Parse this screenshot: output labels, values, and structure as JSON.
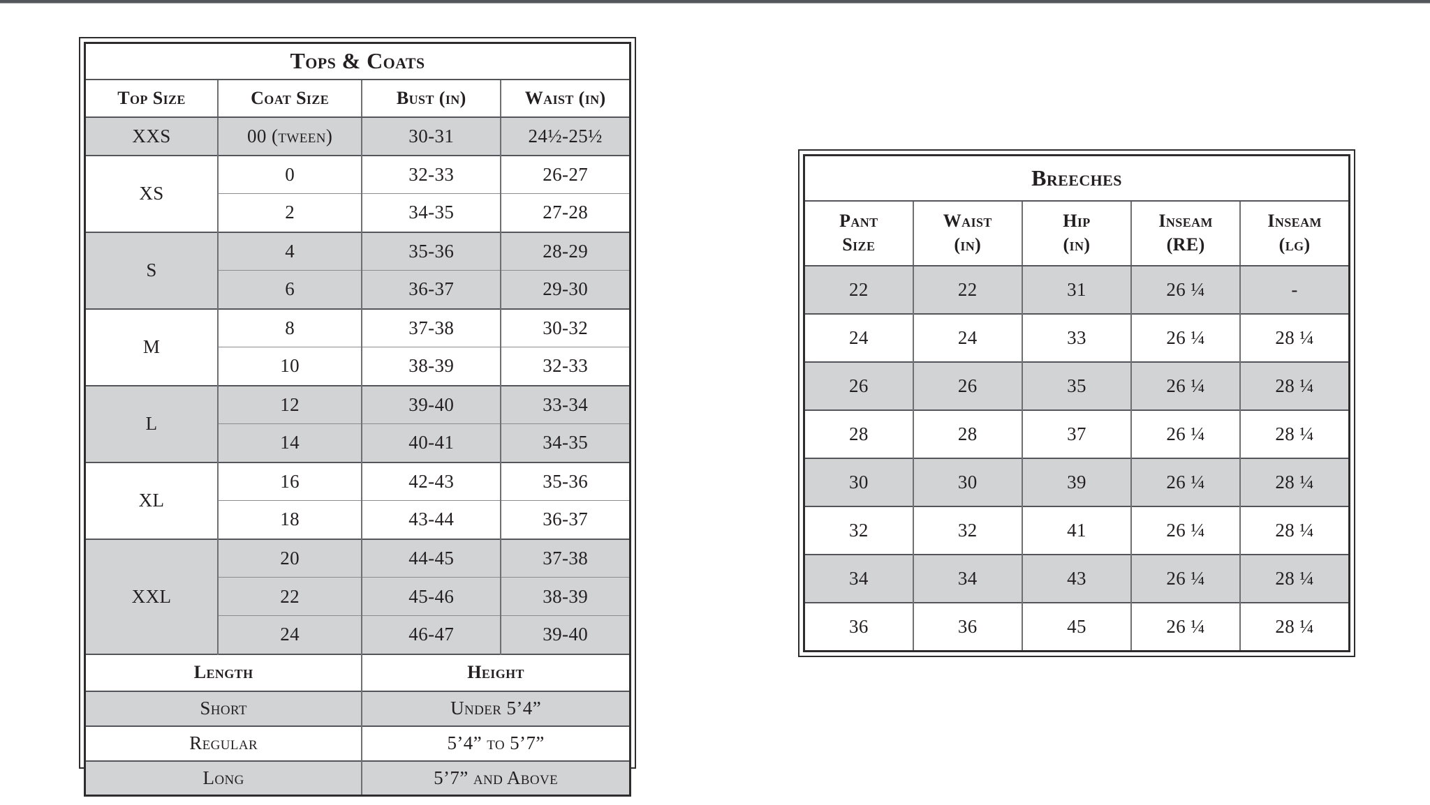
{
  "page": {
    "top_edge_color": "#53565b",
    "background": "#ffffff",
    "ink_color": "#231f20",
    "row_shade_color": "#d2d3d5"
  },
  "tops_coats": {
    "title": "Tops & Coats",
    "columns": [
      "Top Size",
      "Coat Size",
      "Bust (in)",
      "Waist (in)"
    ],
    "groups": [
      {
        "top_size": "XXS",
        "shaded": true,
        "rows": [
          [
            "00 (tween)",
            "30-31",
            "24½-25½"
          ]
        ]
      },
      {
        "top_size": "XS",
        "shaded": false,
        "rows": [
          [
            "0",
            "32-33",
            "26-27"
          ],
          [
            "2",
            "34-35",
            "27-28"
          ]
        ]
      },
      {
        "top_size": "S",
        "shaded": true,
        "rows": [
          [
            "4",
            "35-36",
            "28-29"
          ],
          [
            "6",
            "36-37",
            "29-30"
          ]
        ]
      },
      {
        "top_size": "M",
        "shaded": false,
        "rows": [
          [
            "8",
            "37-38",
            "30-32"
          ],
          [
            "10",
            "38-39",
            "32-33"
          ]
        ]
      },
      {
        "top_size": "L",
        "shaded": true,
        "rows": [
          [
            "12",
            "39-40",
            "33-34"
          ],
          [
            "14",
            "40-41",
            "34-35"
          ]
        ]
      },
      {
        "top_size": "XL",
        "shaded": false,
        "rows": [
          [
            "16",
            "42-43",
            "35-36"
          ],
          [
            "18",
            "43-44",
            "36-37"
          ]
        ]
      },
      {
        "top_size": "XXL",
        "shaded": true,
        "rows": [
          [
            "20",
            "44-45",
            "37-38"
          ],
          [
            "22",
            "45-46",
            "38-39"
          ],
          [
            "24",
            "46-47",
            "39-40"
          ]
        ]
      }
    ],
    "length_section": {
      "headers": [
        "Length",
        "Height"
      ],
      "rows": [
        {
          "length": "Short",
          "height": "Under 5’4”",
          "shaded": true
        },
        {
          "length": "Regular",
          "height": "5’4” to 5’7”",
          "shaded": false
        },
        {
          "length": "Long",
          "height": "5’7” and Above",
          "shaded": true
        }
      ]
    }
  },
  "breeches": {
    "title": "Breeches",
    "columns": [
      [
        "Pant",
        "Size"
      ],
      [
        "Waist",
        "(in)"
      ],
      [
        "Hip",
        "(in)"
      ],
      [
        "Inseam",
        "(RE)"
      ],
      [
        "Inseam",
        "(lg)"
      ]
    ],
    "rows": [
      {
        "shaded": true,
        "cells": [
          "22",
          "22",
          "31",
          "26 ¼",
          "-"
        ]
      },
      {
        "shaded": false,
        "cells": [
          "24",
          "24",
          "33",
          "26 ¼",
          "28 ¼"
        ]
      },
      {
        "shaded": true,
        "cells": [
          "26",
          "26",
          "35",
          "26 ¼",
          "28 ¼"
        ]
      },
      {
        "shaded": false,
        "cells": [
          "28",
          "28",
          "37",
          "26 ¼",
          "28 ¼"
        ]
      },
      {
        "shaded": true,
        "cells": [
          "30",
          "30",
          "39",
          "26 ¼",
          "28 ¼"
        ]
      },
      {
        "shaded": false,
        "cells": [
          "32",
          "32",
          "41",
          "26 ¼",
          "28 ¼"
        ]
      },
      {
        "shaded": true,
        "cells": [
          "34",
          "34",
          "43",
          "26 ¼",
          "28 ¼"
        ]
      },
      {
        "shaded": false,
        "cells": [
          "36",
          "36",
          "45",
          "26 ¼",
          "28 ¼"
        ]
      }
    ]
  }
}
